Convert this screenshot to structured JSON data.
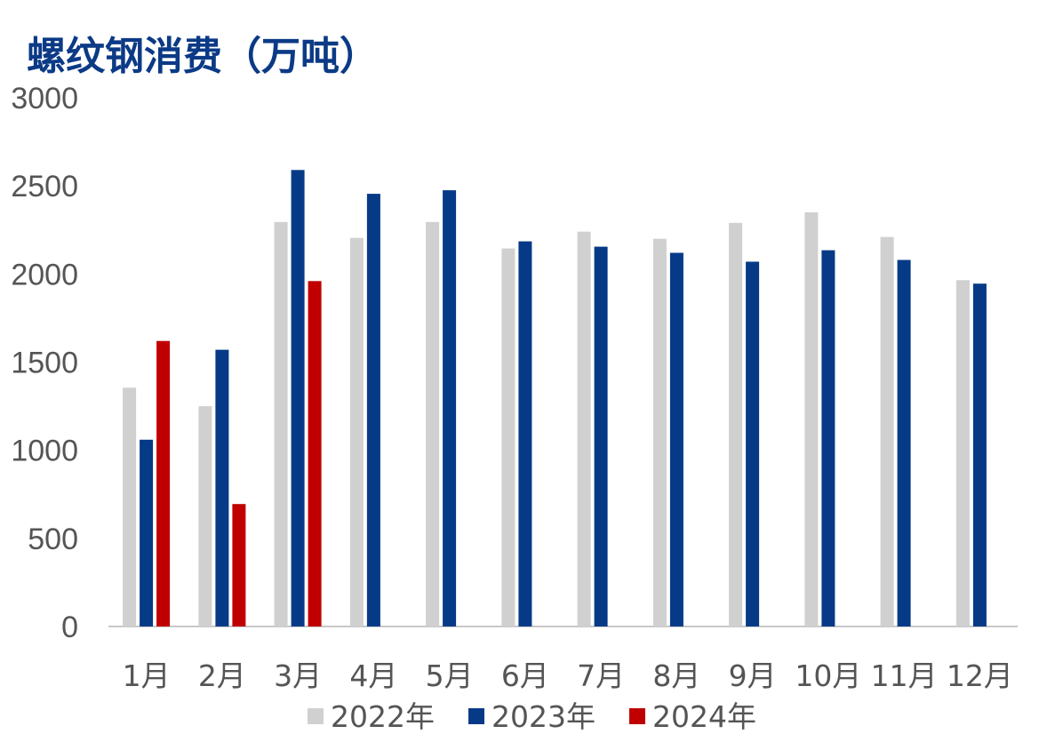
{
  "chart_data": {
    "type": "bar",
    "title": "螺纹钢消费（万吨）",
    "categories": [
      "1月",
      "2月",
      "3月",
      "4月",
      "5月",
      "6月",
      "7月",
      "8月",
      "9月",
      "10月",
      "11月",
      "12月"
    ],
    "series": [
      {
        "name": "2022年",
        "color": "#d0d0d0",
        "values": [
          1355,
          1250,
          2295,
          2205,
          2295,
          2145,
          2240,
          2200,
          2290,
          2350,
          2210,
          1965
        ]
      },
      {
        "name": "2023年",
        "color": "#063a87",
        "values": [
          1060,
          1570,
          2590,
          2455,
          2475,
          2185,
          2155,
          2120,
          2070,
          2135,
          2080,
          1945
        ]
      },
      {
        "name": "2024年",
        "color": "#c00000",
        "values": [
          1620,
          695,
          1960,
          null,
          null,
          null,
          null,
          null,
          null,
          null,
          null,
          null
        ]
      }
    ],
    "ylim": [
      0,
      3000
    ],
    "yticks": [
      0,
      500,
      1000,
      1500,
      2000,
      2500,
      3000
    ],
    "grid": false,
    "legend_position": "bottom",
    "xlabel": "",
    "ylabel": ""
  }
}
